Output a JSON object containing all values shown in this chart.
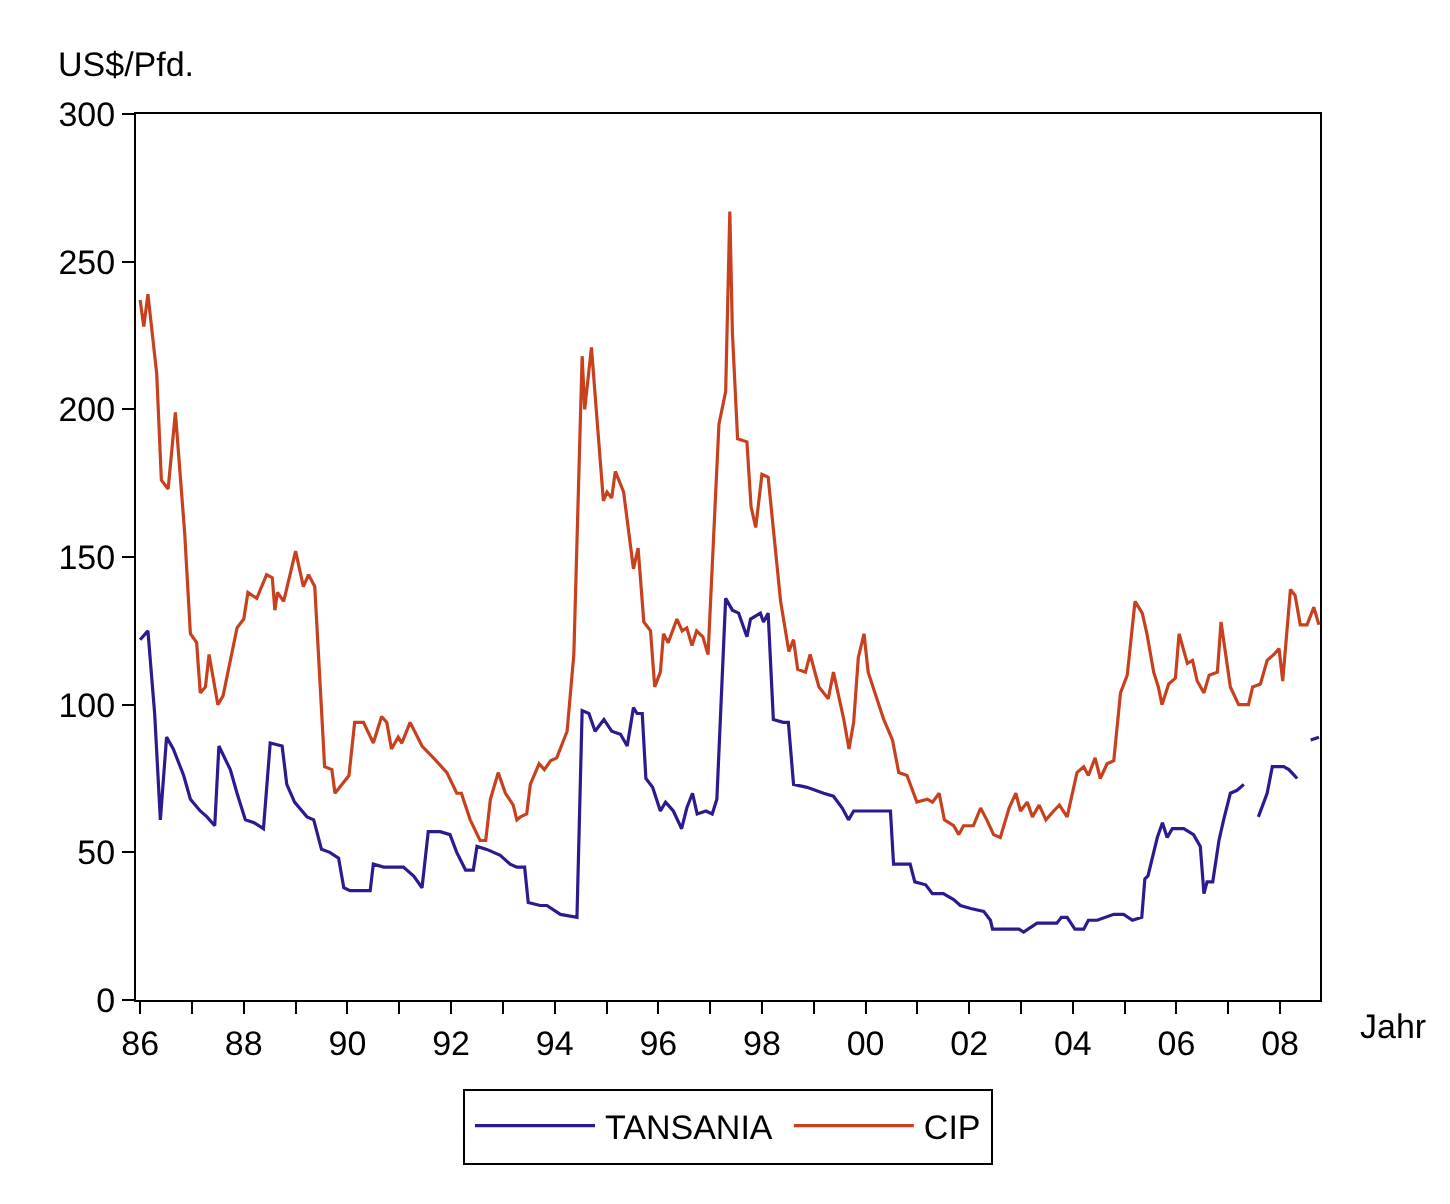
{
  "chart_data": {
    "type": "line",
    "xlabel": "Jahr",
    "ylabel": "US$/Pfd.",
    "xlim": [
      1985.92,
      2008.77
    ],
    "ylim": [
      0,
      300
    ],
    "xticks": [
      {
        "value": 1986,
        "label": "86"
      },
      {
        "value": 1987,
        "label": null
      },
      {
        "value": 1988,
        "label": "88"
      },
      {
        "value": 1989,
        "label": null
      },
      {
        "value": 1990,
        "label": "90"
      },
      {
        "value": 1991,
        "label": null
      },
      {
        "value": 1992,
        "label": "92"
      },
      {
        "value": 1993,
        "label": null
      },
      {
        "value": 1994,
        "label": "94"
      },
      {
        "value": 1995,
        "label": null
      },
      {
        "value": 1996,
        "label": "96"
      },
      {
        "value": 1997,
        "label": null
      },
      {
        "value": 1998,
        "label": "98"
      },
      {
        "value": 1999,
        "label": null
      },
      {
        "value": 2000,
        "label": "00"
      },
      {
        "value": 2001,
        "label": null
      },
      {
        "value": 2002,
        "label": "02"
      },
      {
        "value": 2003,
        "label": null
      },
      {
        "value": 2004,
        "label": "04"
      },
      {
        "value": 2005,
        "label": null
      },
      {
        "value": 2006,
        "label": "06"
      },
      {
        "value": 2007,
        "label": null
      },
      {
        "value": 2008,
        "label": "08"
      }
    ],
    "yticks": [
      0,
      50,
      100,
      150,
      200,
      250,
      300
    ],
    "legend": "bottom",
    "marker": "none",
    "line_style": "solid",
    "series": [
      {
        "name": "TANSANIA",
        "color": "#2b1b8f",
        "x": [
          1986.0,
          1986.15,
          1986.28,
          1986.39,
          1986.51,
          1986.64,
          1986.84,
          1986.97,
          1987.16,
          1987.29,
          1987.44,
          1987.52,
          1987.74,
          1987.87,
          1988.03,
          1988.2,
          1988.38,
          1988.51,
          1988.74,
          1988.83,
          1988.98,
          1989.22,
          1989.35,
          1989.5,
          1989.66,
          1989.83,
          1989.93,
          1990.05,
          1990.44,
          1990.5,
          1990.7,
          1991.08,
          1991.28,
          1991.44,
          1991.56,
          1991.79,
          1991.98,
          1992.11,
          1992.28,
          1992.43,
          1992.5,
          1992.69,
          1992.95,
          1993.14,
          1993.27,
          1993.42,
          1993.49,
          1993.72,
          1993.85,
          1994.11,
          1994.43,
          1994.53,
          1994.66,
          1994.78,
          1994.95,
          1995.1,
          1995.27,
          1995.4,
          1995.52,
          1995.59,
          1995.69,
          1995.76,
          1995.89,
          1996.04,
          1996.14,
          1996.29,
          1996.45,
          1996.55,
          1996.66,
          1996.75,
          1996.92,
          1997.04,
          1997.13,
          1997.3,
          1997.43,
          1997.55,
          1997.71,
          1997.78,
          1997.97,
          1998.03,
          1998.12,
          1998.22,
          1998.41,
          1998.51,
          1998.61,
          1998.87,
          1999.19,
          1999.38,
          1999.55,
          1999.67,
          1999.77,
          2000.48,
          2000.54,
          2000.86,
          2000.95,
          2001.16,
          2001.29,
          2001.5,
          2001.7,
          2001.83,
          2002.03,
          2002.28,
          2002.41,
          2002.45,
          2002.6,
          2002.96,
          2003.05,
          2003.31,
          2003.69,
          2003.78,
          2003.89,
          2004.04,
          2004.21,
          2004.3,
          2004.47,
          2004.79,
          2004.98,
          2005.15,
          2005.33,
          2005.39,
          2005.45,
          2005.63,
          2005.73,
          2005.82,
          2005.92,
          2006.14,
          2006.33,
          2006.46,
          2006.53,
          2006.59,
          2006.7,
          2006.82,
          2006.91,
          2007.04,
          2007.17,
          2007.3,
          2007.44,
          2007.58,
          2007.75,
          2007.85,
          2008.07,
          2008.17,
          2008.33,
          2008.46,
          2008.59,
          2008.75
        ],
        "values": [
          122,
          125,
          97,
          61,
          89,
          85,
          76,
          68,
          64,
          62,
          59,
          86,
          78,
          70,
          61,
          60,
          58,
          87,
          86,
          73,
          67,
          62,
          61,
          51,
          50,
          48,
          38,
          37,
          37,
          46,
          45,
          45,
          42,
          38,
          57,
          57,
          56,
          50,
          44,
          44,
          52,
          51,
          49,
          46,
          45,
          45,
          33,
          32,
          32,
          29,
          28,
          98,
          97,
          91,
          95,
          91,
          90,
          86,
          99,
          97,
          97,
          75,
          72,
          64,
          67,
          64,
          58,
          65,
          70,
          63,
          64,
          63,
          68,
          136,
          132,
          131,
          123,
          129,
          131,
          128,
          131,
          95,
          94,
          94,
          73,
          72,
          70,
          69,
          65,
          61,
          64,
          64,
          46,
          46,
          40,
          39,
          36,
          36,
          34,
          32,
          31,
          30,
          27,
          24,
          24,
          24,
          23,
          26,
          26,
          28,
          28,
          24,
          24,
          27,
          27,
          29,
          29,
          27,
          28,
          41,
          42,
          55,
          60,
          55,
          58,
          58,
          56,
          52,
          36,
          40,
          40,
          54,
          61,
          70,
          71,
          73,
          null,
          62,
          70,
          79,
          79,
          78,
          75,
          null,
          88,
          89
        ]
      },
      {
        "name": "CIP",
        "color": "#c8411e",
        "x": [
          1986.0,
          1986.07,
          1986.15,
          1986.32,
          1986.41,
          1986.54,
          1986.68,
          1986.86,
          1986.97,
          1987.09,
          1987.16,
          1987.26,
          1987.33,
          1987.5,
          1987.6,
          1987.87,
          1988.0,
          1988.08,
          1988.25,
          1988.44,
          1988.55,
          1988.6,
          1988.65,
          1988.77,
          1989.0,
          1989.15,
          1989.25,
          1989.37,
          1989.56,
          1989.7,
          1989.76,
          1990.03,
          1990.14,
          1990.31,
          1990.5,
          1990.66,
          1990.76,
          1990.85,
          1990.98,
          1991.05,
          1991.21,
          1991.44,
          1991.66,
          1991.92,
          1992.11,
          1992.2,
          1992.37,
          1992.56,
          1992.67,
          1992.76,
          1992.91,
          1993.05,
          1993.2,
          1993.27,
          1993.34,
          1993.46,
          1993.53,
          1993.7,
          1993.8,
          1993.92,
          1994.04,
          1994.24,
          1994.37,
          1994.53,
          1994.58,
          1994.71,
          1994.82,
          1994.94,
          1995.01,
          1995.1,
          1995.17,
          1995.33,
          1995.52,
          1995.61,
          1995.72,
          1995.85,
          1995.93,
          1996.04,
          1996.1,
          1996.19,
          1996.36,
          1996.46,
          1996.55,
          1996.65,
          1996.74,
          1996.86,
          1996.96,
          1997.17,
          1997.3,
          1997.38,
          1997.43,
          1997.53,
          1997.71,
          1997.79,
          1997.88,
          1998.0,
          1998.12,
          1998.36,
          1998.52,
          1998.61,
          1998.69,
          1998.84,
          1998.93,
          1999.1,
          1999.28,
          1999.38,
          1999.58,
          1999.68,
          1999.77,
          1999.86,
          1999.97,
          2000.05,
          2000.35,
          2000.52,
          2000.64,
          2000.8,
          2000.99,
          2001.19,
          2001.29,
          2001.42,
          2001.52,
          2001.7,
          2001.8,
          2001.89,
          2002.08,
          2002.22,
          2002.34,
          2002.47,
          2002.6,
          2002.77,
          2002.9,
          2002.99,
          2003.12,
          2003.22,
          2003.35,
          2003.48,
          2003.63,
          2003.74,
          2003.89,
          2004.08,
          2004.21,
          2004.3,
          2004.43,
          2004.53,
          2004.66,
          2004.79,
          2004.92,
          2005.05,
          2005.2,
          2005.34,
          2005.43,
          2005.56,
          2005.65,
          2005.72,
          2005.85,
          2005.98,
          2006.05,
          2006.21,
          2006.31,
          2006.4,
          2006.53,
          2006.63,
          2006.79,
          2006.86,
          2007.04,
          2007.2,
          2007.39,
          2007.47,
          2007.62,
          2007.75,
          2007.88,
          2007.98,
          2008.05,
          2008.2,
          2008.29,
          2008.39,
          2008.52,
          2008.65,
          2008.75
        ],
        "values": [
          237,
          228,
          239,
          212,
          176,
          173,
          199,
          158,
          124,
          121,
          104,
          106,
          117,
          100,
          103,
          126,
          129,
          138,
          136,
          144,
          143,
          132,
          138,
          135,
          152,
          140,
          144,
          140,
          79,
          78,
          70,
          76,
          94,
          94,
          87,
          96,
          94,
          85,
          89,
          87,
          94,
          86,
          82,
          77,
          70,
          70,
          61,
          54,
          54,
          68,
          77,
          70,
          66,
          61,
          62,
          63,
          73,
          80,
          78,
          81,
          82,
          91,
          117,
          218,
          200,
          221,
          196,
          169,
          172,
          170,
          179,
          172,
          146,
          153,
          128,
          125,
          106,
          111,
          124,
          121,
          129,
          125,
          126,
          120,
          125,
          123,
          117,
          195,
          206,
          267,
          226,
          190,
          189,
          167,
          160,
          178,
          177,
          135,
          118,
          122,
          112,
          111,
          117,
          106,
          102,
          111,
          95,
          85,
          94,
          116,
          124,
          111,
          95,
          88,
          77,
          76,
          67,
          68,
          67,
          70,
          61,
          59,
          56,
          59,
          59,
          65,
          61,
          56,
          55,
          65,
          70,
          64,
          67,
          62,
          66,
          61,
          64,
          66,
          62,
          77,
          79,
          76,
          82,
          75,
          80,
          81,
          104,
          110,
          135,
          131,
          124,
          111,
          106,
          100,
          107,
          109,
          124,
          114,
          115,
          108,
          104,
          110,
          111,
          128,
          106,
          100,
          100,
          106,
          107,
          115,
          117,
          119,
          108,
          139,
          137,
          127,
          127,
          133,
          127
        ]
      }
    ]
  }
}
